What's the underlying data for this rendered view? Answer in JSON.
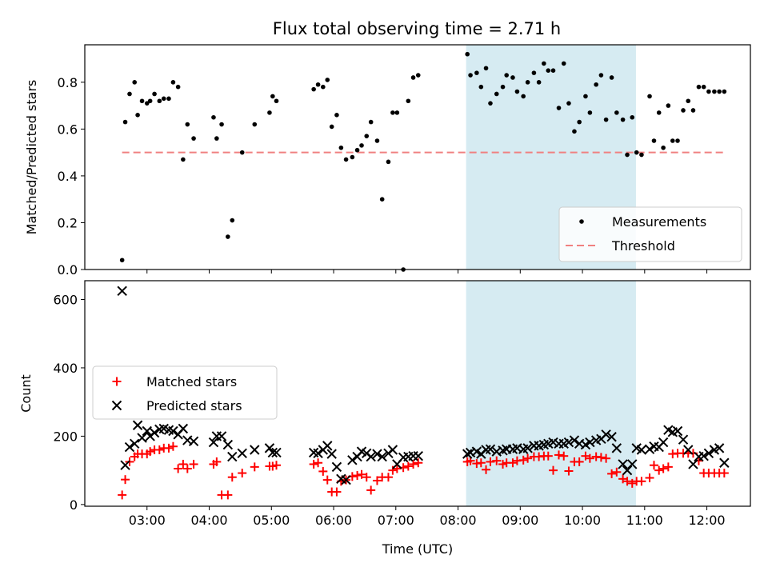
{
  "chart_data": [
    {
      "type": "scatter",
      "title": "Flux total observing time = 2.71 h",
      "xlabel": "",
      "ylabel": "Matched/Predicted stars",
      "ylim": [
        0,
        0.96
      ],
      "y_ticks": [
        "0.0",
        "0.2",
        "0.4",
        "0.6",
        "0.8"
      ],
      "legend": {
        "placement": "lower-right",
        "measurements_label": "Measurements",
        "threshold_label": "Threshold"
      },
      "threshold": {
        "value": 0.5,
        "x_start": 2.6,
        "x_end": 12.3,
        "color": "#f08080"
      },
      "highlight": {
        "x_start": 8.13,
        "x_end": 10.86,
        "color": "#add8e6"
      },
      "series": [
        {
          "name": "Measurements",
          "color": "#000000",
          "x": [
            2.6,
            2.65,
            2.72,
            2.8,
            2.85,
            2.92,
            3.0,
            3.05,
            3.12,
            3.2,
            3.27,
            3.35,
            3.42,
            3.5,
            3.58,
            3.65,
            3.75,
            4.07,
            4.12,
            4.2,
            4.3,
            4.37,
            4.53,
            4.73,
            4.97,
            5.02,
            5.08,
            5.68,
            5.75,
            5.83,
            5.9,
            5.97,
            6.05,
            6.12,
            6.2,
            6.3,
            6.38,
            6.45,
            6.53,
            6.6,
            6.7,
            6.78,
            6.88,
            6.95,
            7.02,
            7.12,
            7.2,
            7.28,
            7.36,
            8.15,
            8.2,
            8.3,
            8.37,
            8.45,
            8.52,
            8.62,
            8.72,
            8.78,
            8.88,
            8.95,
            9.05,
            9.12,
            9.22,
            9.3,
            9.38,
            9.45,
            9.53,
            9.62,
            9.7,
            9.78,
            9.87,
            9.95,
            10.05,
            10.12,
            10.22,
            10.3,
            10.38,
            10.47,
            10.55,
            10.65,
            10.72,
            10.8,
            10.87,
            10.95,
            11.08,
            11.15,
            11.23,
            11.3,
            11.38,
            11.45,
            11.53,
            11.62,
            11.7,
            11.78,
            11.87,
            11.95,
            12.03,
            12.12,
            12.2,
            12.28
          ],
          "y": [
            0.04,
            0.63,
            0.75,
            0.8,
            0.66,
            0.72,
            0.71,
            0.72,
            0.75,
            0.72,
            0.73,
            0.73,
            0.8,
            0.78,
            0.47,
            0.62,
            0.56,
            0.65,
            0.56,
            0.62,
            0.14,
            0.21,
            0.5,
            0.62,
            0.67,
            0.74,
            0.72,
            0.77,
            0.79,
            0.78,
            0.81,
            0.61,
            0.66,
            0.52,
            0.47,
            0.48,
            0.51,
            0.53,
            0.57,
            0.63,
            0.55,
            0.3,
            0.46,
            0.67,
            0.67,
            0.0,
            0.72,
            0.82,
            0.83,
            0.92,
            0.83,
            0.84,
            0.78,
            0.86,
            0.71,
            0.75,
            0.78,
            0.83,
            0.82,
            0.76,
            0.74,
            0.8,
            0.84,
            0.8,
            0.88,
            0.85,
            0.85,
            0.69,
            0.88,
            0.71,
            0.59,
            0.63,
            0.74,
            0.67,
            0.79,
            0.83,
            0.64,
            0.82,
            0.67,
            0.64,
            0.49,
            0.65,
            0.5,
            0.49,
            0.74,
            0.55,
            0.67,
            0.52,
            0.7,
            0.55,
            0.55,
            0.68,
            0.72,
            0.68,
            0.78,
            0.78,
            0.76,
            0.76,
            0.76,
            0.76
          ]
        }
      ]
    },
    {
      "type": "scatter",
      "title": "",
      "xlabel": "Time (UTC)",
      "ylabel": "Count",
      "xlim": [
        2.0,
        12.7
      ],
      "ylim": [
        -5,
        655
      ],
      "x_ticks": [
        "03:00",
        "04:00",
        "05:00",
        "06:00",
        "07:00",
        "08:00",
        "09:00",
        "10:00",
        "11:00",
        "12:00"
      ],
      "x_tick_values": [
        3,
        4,
        5,
        6,
        7,
        8,
        9,
        10,
        11,
        12
      ],
      "y_ticks": [
        "0",
        "200",
        "400",
        "600"
      ],
      "y_tick_values": [
        0,
        200,
        400,
        600
      ],
      "legend": {
        "placement": "center-left",
        "matched_label": "Matched stars",
        "predicted_label": "Predicted stars"
      },
      "highlight": {
        "x_start": 8.13,
        "x_end": 10.86,
        "color": "#add8e6"
      },
      "series": [
        {
          "name": "Matched stars",
          "marker": "plus",
          "color": "#ff0000",
          "x": [
            2.6,
            2.65,
            2.72,
            2.8,
            2.85,
            2.92,
            3.0,
            3.05,
            3.12,
            3.2,
            3.27,
            3.35,
            3.42,
            3.5,
            3.58,
            3.65,
            3.75,
            4.07,
            4.12,
            4.2,
            4.3,
            4.37,
            4.53,
            4.73,
            4.97,
            5.02,
            5.08,
            5.68,
            5.75,
            5.83,
            5.9,
            5.97,
            6.05,
            6.12,
            6.2,
            6.3,
            6.38,
            6.45,
            6.53,
            6.6,
            6.7,
            6.78,
            6.88,
            6.95,
            7.02,
            7.12,
            7.2,
            7.28,
            7.36,
            8.15,
            8.2,
            8.3,
            8.37,
            8.45,
            8.52,
            8.62,
            8.72,
            8.78,
            8.88,
            8.95,
            9.05,
            9.12,
            9.22,
            9.3,
            9.38,
            9.45,
            9.53,
            9.62,
            9.7,
            9.78,
            9.87,
            9.95,
            10.05,
            10.12,
            10.22,
            10.3,
            10.38,
            10.47,
            10.55,
            10.65,
            10.72,
            10.8,
            10.87,
            10.95,
            11.08,
            11.15,
            11.23,
            11.3,
            11.38,
            11.45,
            11.53,
            11.62,
            11.7,
            11.78,
            11.87,
            11.95,
            12.03,
            12.12,
            12.2,
            12.28
          ],
          "y": [
            28,
            73,
            125,
            140,
            148,
            148,
            148,
            155,
            160,
            160,
            165,
            165,
            170,
            105,
            118,
            105,
            118,
            118,
            125,
            28,
            28,
            80,
            92,
            110,
            112,
            112,
            115,
            118,
            122,
            97,
            72,
            37,
            37,
            68,
            72,
            82,
            85,
            88,
            80,
            42,
            70,
            80,
            80,
            100,
            105,
            108,
            112,
            118,
            122,
            125,
            128,
            120,
            122,
            102,
            125,
            128,
            118,
            122,
            122,
            128,
            130,
            135,
            140,
            140,
            142,
            142,
            100,
            145,
            142,
            98,
            125,
            125,
            142,
            135,
            140,
            138,
            135,
            90,
            95,
            75,
            68,
            62,
            68,
            68,
            78,
            115,
            100,
            105,
            110,
            148,
            150,
            150,
            150,
            150,
            128,
            92,
            92,
            92,
            92,
            92
          ]
        },
        {
          "name": "Predicted stars",
          "marker": "x",
          "color": "#000000",
          "x": [
            2.6,
            2.65,
            2.72,
            2.8,
            2.85,
            2.92,
            3.0,
            3.05,
            3.12,
            3.2,
            3.27,
            3.35,
            3.42,
            3.5,
            3.58,
            3.65,
            3.75,
            4.07,
            4.12,
            4.2,
            4.3,
            4.37,
            4.53,
            4.73,
            4.97,
            5.02,
            5.08,
            5.68,
            5.75,
            5.83,
            5.9,
            5.97,
            6.05,
            6.12,
            6.2,
            6.3,
            6.38,
            6.45,
            6.53,
            6.6,
            6.7,
            6.78,
            6.88,
            6.95,
            7.02,
            7.12,
            7.2,
            7.28,
            7.36,
            8.15,
            8.2,
            8.3,
            8.37,
            8.45,
            8.52,
            8.62,
            8.72,
            8.78,
            8.88,
            8.95,
            9.05,
            9.12,
            9.22,
            9.3,
            9.38,
            9.45,
            9.53,
            9.62,
            9.7,
            9.78,
            9.87,
            9.95,
            10.05,
            10.12,
            10.22,
            10.3,
            10.38,
            10.47,
            10.55,
            10.65,
            10.72,
            10.8,
            10.87,
            10.95,
            11.08,
            11.15,
            11.23,
            11.3,
            11.38,
            11.45,
            11.53,
            11.62,
            11.7,
            11.78,
            11.87,
            11.95,
            12.03,
            12.12,
            12.2,
            12.28
          ],
          "y": [
            625,
            115,
            168,
            178,
            232,
            195,
            215,
            200,
            210,
            220,
            222,
            218,
            215,
            205,
            222,
            188,
            185,
            182,
            200,
            200,
            175,
            140,
            150,
            160,
            165,
            152,
            152,
            152,
            150,
            160,
            172,
            148,
            110,
            75,
            72,
            130,
            140,
            155,
            150,
            140,
            148,
            140,
            150,
            160,
            118,
            138,
            140,
            142,
            142,
            148,
            152,
            155,
            148,
            160,
            162,
            155,
            158,
            162,
            162,
            165,
            162,
            165,
            172,
            172,
            175,
            178,
            182,
            178,
            178,
            182,
            188,
            178,
            175,
            182,
            188,
            192,
            205,
            198,
            165,
            118,
            100,
            118,
            165,
            160,
            162,
            170,
            168,
            182,
            218,
            212,
            215,
            190,
            160,
            118,
            140,
            142,
            150,
            160,
            165,
            122
          ]
        }
      ]
    }
  ]
}
